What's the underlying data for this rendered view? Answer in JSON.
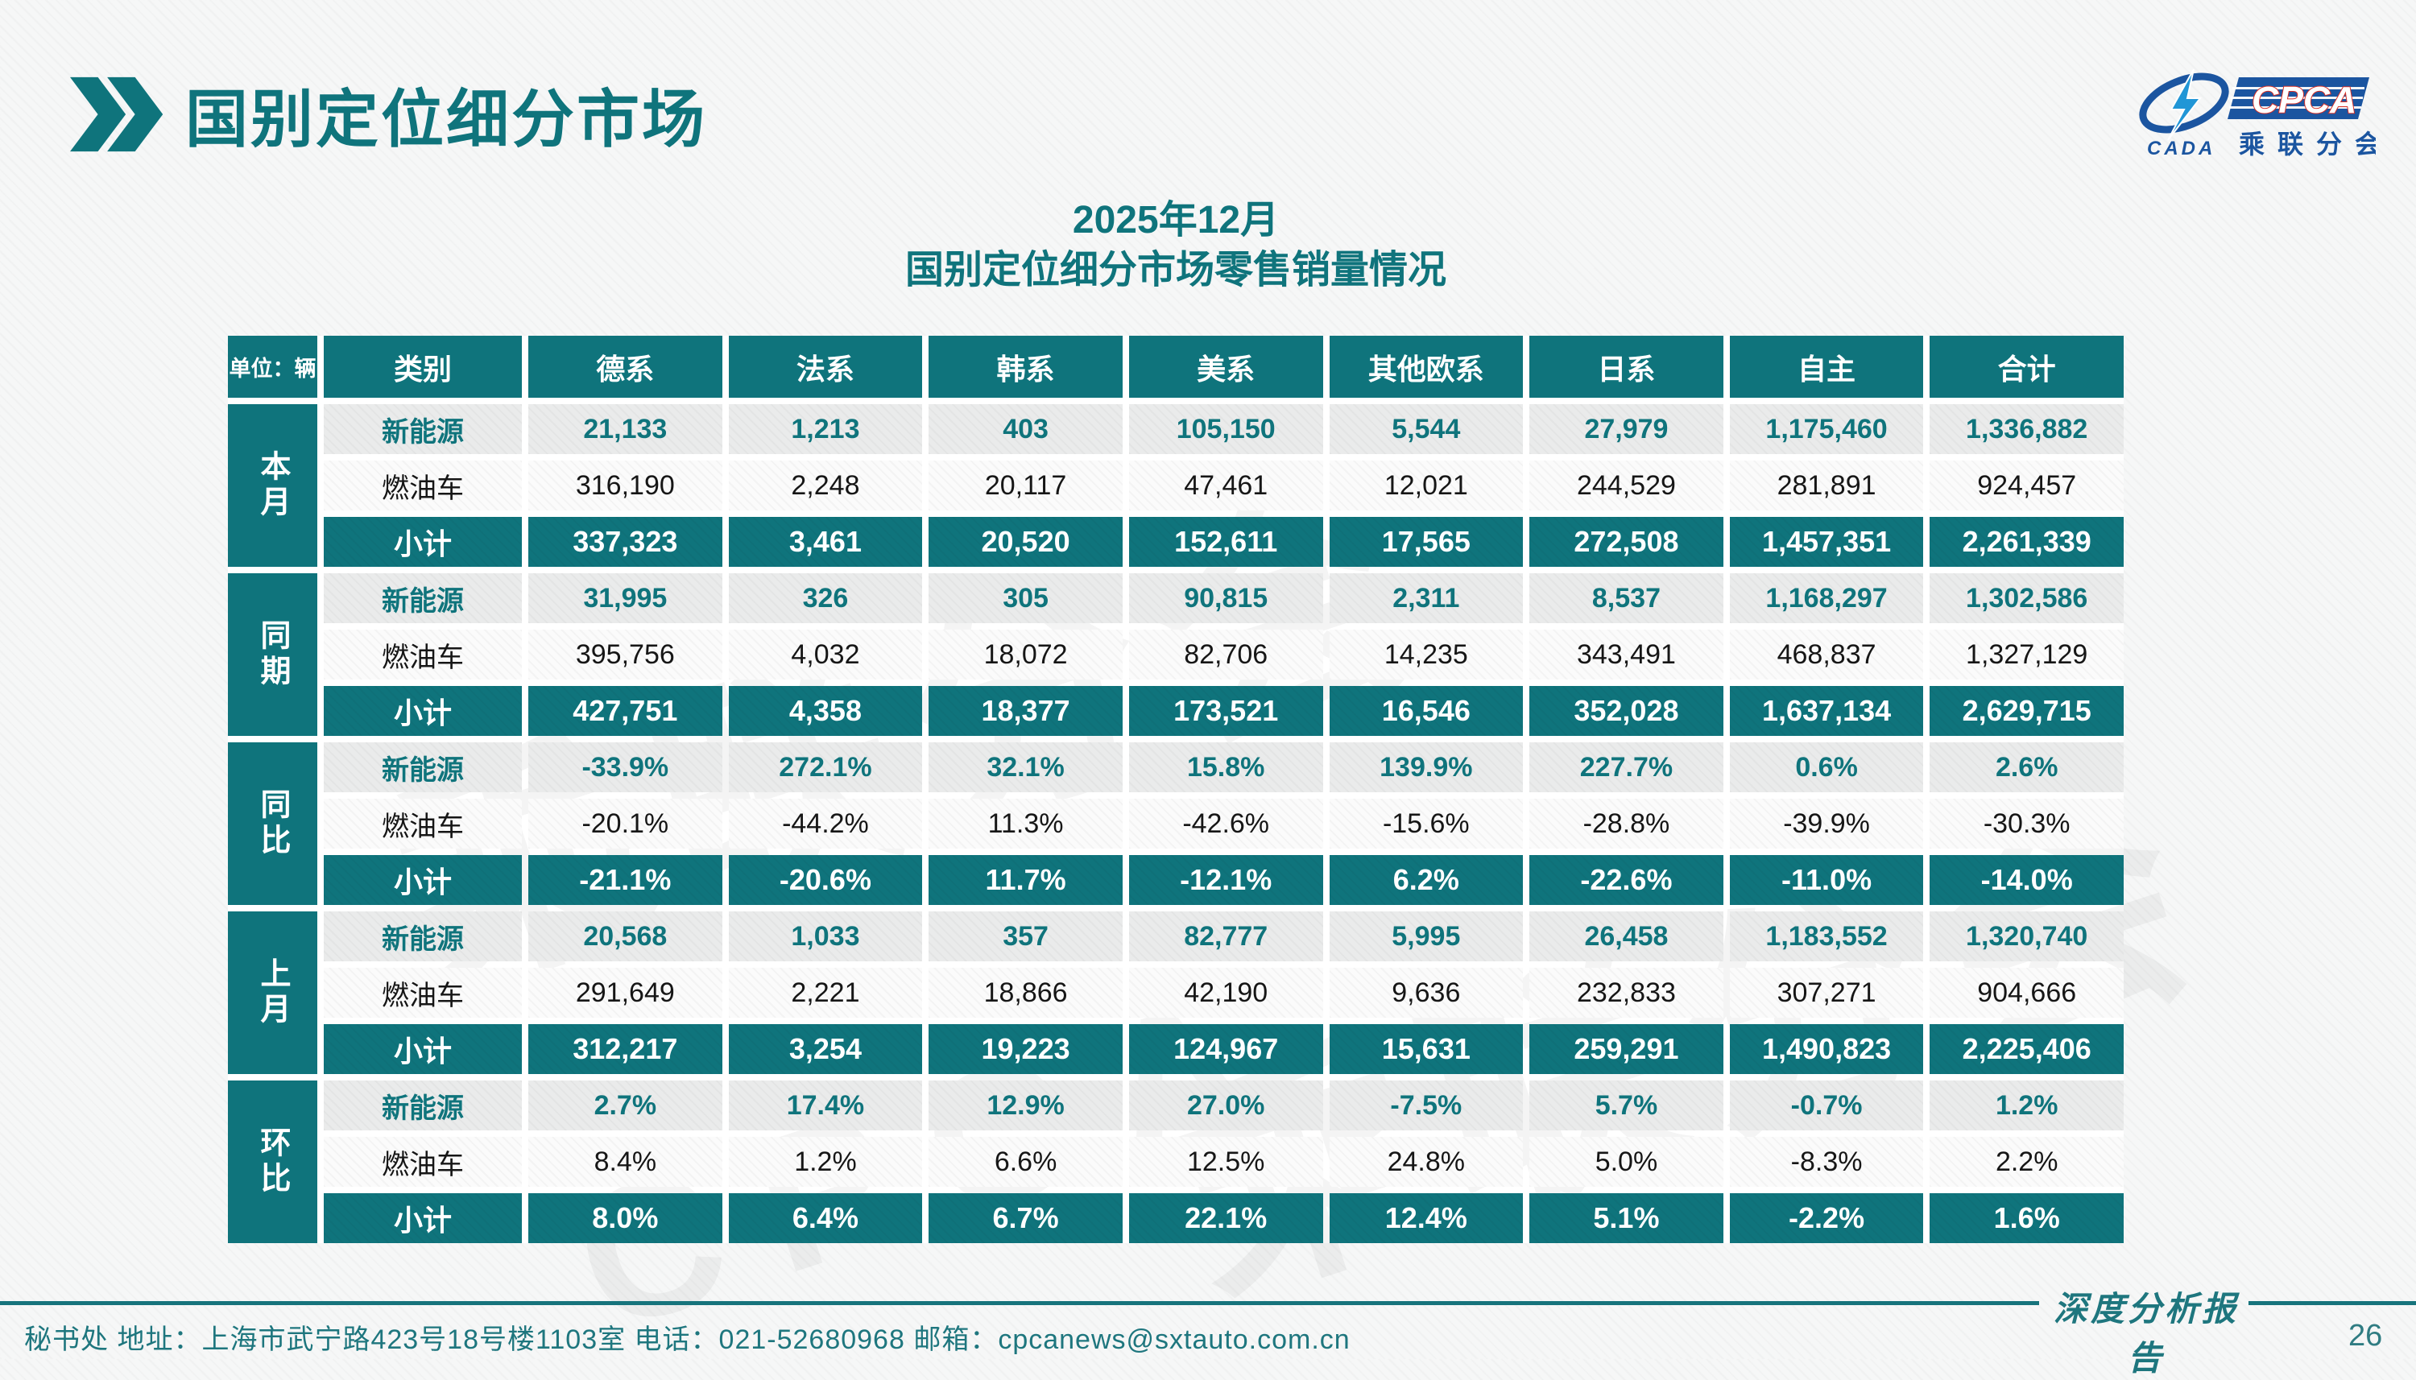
{
  "slide": {
    "title": "国别定位细分市场",
    "subtitle": [
      "2025年12月",
      "国别定位细分市场零售销量情况"
    ],
    "footer_left": "秘书处   地址：上海市武宁路423号18号楼1103室  电话：021-52680968   邮箱：cpcanews@sxtauto.com.cn",
    "footer_right": "深度分析报告",
    "page_number": "26"
  },
  "logo": {
    "cpca_text": "CPCA",
    "cada_text": "CADA",
    "org_cn": "乘联分会"
  },
  "colors": {
    "teal": "#0F747C",
    "logo_blue": "#1B55A0",
    "logo_light_blue": "#2196D6",
    "logo_red": "#D93026"
  },
  "chart_data": {
    "type": "table",
    "title": "2025年12月 国别定位细分市场零售销量情况",
    "unit": "单位：辆",
    "columns": [
      "类别",
      "德系",
      "法系",
      "韩系",
      "美系",
      "其他欧系",
      "日系",
      "自主",
      "合计"
    ],
    "row_groups": [
      {
        "label": "本月",
        "rows": [
          {
            "label": "新能源",
            "style": "nev",
            "values": [
              "21,133",
              "1,213",
              "403",
              "105,150",
              "5,544",
              "27,979",
              "1,175,460",
              "1,336,882"
            ]
          },
          {
            "label": "燃油车",
            "style": "ice",
            "values": [
              "316,190",
              "2,248",
              "20,117",
              "47,461",
              "12,021",
              "244,529",
              "281,891",
              "924,457"
            ]
          },
          {
            "label": "小计",
            "style": "subtotal",
            "values": [
              "337,323",
              "3,461",
              "20,520",
              "152,611",
              "17,565",
              "272,508",
              "1,457,351",
              "2,261,339"
            ]
          }
        ]
      },
      {
        "label": "同期",
        "rows": [
          {
            "label": "新能源",
            "style": "nev",
            "values": [
              "31,995",
              "326",
              "305",
              "90,815",
              "2,311",
              "8,537",
              "1,168,297",
              "1,302,586"
            ]
          },
          {
            "label": "燃油车",
            "style": "ice",
            "values": [
              "395,756",
              "4,032",
              "18,072",
              "82,706",
              "14,235",
              "343,491",
              "468,837",
              "1,327,129"
            ]
          },
          {
            "label": "小计",
            "style": "subtotal",
            "values": [
              "427,751",
              "4,358",
              "18,377",
              "173,521",
              "16,546",
              "352,028",
              "1,637,134",
              "2,629,715"
            ]
          }
        ]
      },
      {
        "label": "同比",
        "rows": [
          {
            "label": "新能源",
            "style": "nev",
            "values": [
              "-33.9%",
              "272.1%",
              "32.1%",
              "15.8%",
              "139.9%",
              "227.7%",
              "0.6%",
              "2.6%"
            ]
          },
          {
            "label": "燃油车",
            "style": "ice",
            "values": [
              "-20.1%",
              "-44.2%",
              "11.3%",
              "-42.6%",
              "-15.6%",
              "-28.8%",
              "-39.9%",
              "-30.3%"
            ]
          },
          {
            "label": "小计",
            "style": "subtotal",
            "values": [
              "-21.1%",
              "-20.6%",
              "11.7%",
              "-12.1%",
              "6.2%",
              "-22.6%",
              "-11.0%",
              "-14.0%"
            ]
          }
        ]
      },
      {
        "label": "上月",
        "rows": [
          {
            "label": "新能源",
            "style": "nev",
            "values": [
              "20,568",
              "1,033",
              "357",
              "82,777",
              "5,995",
              "26,458",
              "1,183,552",
              "1,320,740"
            ]
          },
          {
            "label": "燃油车",
            "style": "ice",
            "values": [
              "291,649",
              "2,221",
              "18,866",
              "42,190",
              "9,636",
              "232,833",
              "307,271",
              "904,666"
            ]
          },
          {
            "label": "小计",
            "style": "subtotal",
            "values": [
              "312,217",
              "3,254",
              "19,223",
              "124,967",
              "15,631",
              "259,291",
              "1,490,823",
              "2,225,406"
            ]
          }
        ]
      },
      {
        "label": "环比",
        "rows": [
          {
            "label": "新能源",
            "style": "nev",
            "values": [
              "2.7%",
              "17.4%",
              "12.9%",
              "27.0%",
              "-7.5%",
              "5.7%",
              "-0.7%",
              "1.2%"
            ]
          },
          {
            "label": "燃油车",
            "style": "ice",
            "values": [
              "8.4%",
              "1.2%",
              "6.6%",
              "12.5%",
              "24.8%",
              "5.0%",
              "-8.3%",
              "2.2%"
            ]
          },
          {
            "label": "小计",
            "style": "subtotal",
            "values": [
              "8.0%",
              "6.4%",
              "6.7%",
              "22.1%",
              "12.4%",
              "5.1%",
              "-2.2%",
              "1.6%"
            ]
          }
        ]
      }
    ]
  }
}
